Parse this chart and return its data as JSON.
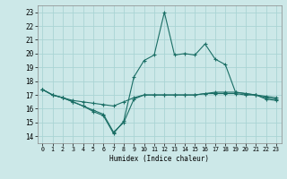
{
  "xlabel": "Humidex (Indice chaleur)",
  "xlim": [
    -0.5,
    23.5
  ],
  "ylim": [
    13.5,
    23.5
  ],
  "yticks": [
    14,
    15,
    16,
    17,
    18,
    19,
    20,
    21,
    22,
    23
  ],
  "xticks": [
    0,
    1,
    2,
    3,
    4,
    5,
    6,
    7,
    8,
    9,
    10,
    11,
    12,
    13,
    14,
    15,
    16,
    17,
    18,
    19,
    20,
    21,
    22,
    23
  ],
  "bg_color": "#cce8e8",
  "grid_color": "#aad4d4",
  "line_color": "#1a6e65",
  "line1": {
    "x": [
      0,
      1,
      2,
      3,
      4,
      5,
      6,
      7,
      8,
      9,
      10,
      11,
      12,
      13,
      14,
      15,
      16,
      17,
      18,
      19,
      20,
      21,
      22,
      23
    ],
    "y": [
      17.4,
      17.0,
      16.8,
      16.6,
      16.5,
      16.4,
      16.3,
      16.2,
      16.5,
      16.8,
      17.0,
      17.0,
      17.0,
      17.0,
      17.0,
      17.0,
      17.1,
      17.1,
      17.1,
      17.1,
      17.0,
      17.0,
      16.9,
      16.8
    ]
  },
  "line2": {
    "x": [
      0,
      1,
      2,
      3,
      4,
      5,
      6,
      7,
      8,
      9,
      10,
      11,
      12,
      13,
      14,
      15,
      16,
      17,
      18,
      19,
      20,
      21,
      22,
      23
    ],
    "y": [
      17.4,
      17.0,
      16.8,
      16.5,
      16.2,
      15.9,
      15.6,
      14.3,
      15.0,
      16.7,
      17.0,
      17.0,
      17.0,
      17.0,
      17.0,
      17.0,
      17.1,
      17.2,
      17.2,
      17.2,
      17.1,
      17.0,
      16.8,
      16.7
    ]
  },
  "line3": {
    "x": [
      0,
      1,
      2,
      3,
      4,
      5,
      6,
      7,
      8,
      9,
      10,
      11,
      12,
      13,
      14,
      15,
      16,
      17,
      18,
      19,
      20,
      21,
      22,
      23
    ],
    "y": [
      17.4,
      17.0,
      16.8,
      16.5,
      16.2,
      15.8,
      15.5,
      14.2,
      15.1,
      18.3,
      19.5,
      19.9,
      23.0,
      19.9,
      20.0,
      19.9,
      20.7,
      19.6,
      19.2,
      17.2,
      17.1,
      17.0,
      16.7,
      16.6
    ]
  }
}
